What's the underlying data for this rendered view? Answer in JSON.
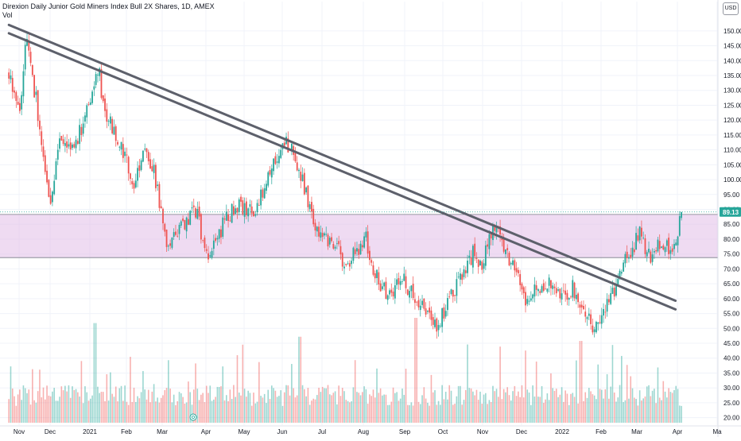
{
  "header": {
    "title": "Direxion Daily Junior Gold Miners Index Bull 2X Shares, 1D, AMEX",
    "volume_label": "Vol",
    "currency": "USD"
  },
  "colors": {
    "up": "#26a69a",
    "down": "#ef5350",
    "trendline": "#5d606b",
    "zone_fill": "#e1bee7",
    "zone_border": "#787b86",
    "price_tag": "#26a69a"
  },
  "chart_data": {
    "type": "candlestick",
    "title": "Direxion Daily Junior Gold Miners Index Bull 2X Shares, 1D, AMEX",
    "y_axis": {
      "ticks": [
        "150.00",
        "145.00",
        "140.00",
        "135.00",
        "130.00",
        "125.00",
        "120.00",
        "115.00",
        "110.00",
        "105.00",
        "100.00",
        "95.00",
        "90.00",
        "85.00",
        "80.00",
        "75.00",
        "70.00",
        "65.00",
        "60.00",
        "55.00",
        "50.00",
        "45.00",
        "40.00",
        "35.00",
        "30.00",
        "25.00",
        "20.00"
      ],
      "range": [
        17.5,
        154.5
      ]
    },
    "x_axis": {
      "labels": [
        "Nov",
        "Dec",
        "2021",
        "Feb",
        "Mar",
        "Apr",
        "May",
        "Jun",
        "Jul",
        "Aug",
        "Sep",
        "Oct",
        "Nov",
        "Dec",
        "2022",
        "Feb",
        "Mar",
        "Apr",
        "Ma"
      ]
    },
    "last_price": "89.13",
    "zone": {
      "top": 88.3,
      "bottom": 73.8
    },
    "trendlines": [
      {
        "from": [
          "2020-10-28",
          152.0
        ],
        "to": [
          "2022-04-05",
          59.3
        ]
      },
      {
        "from": [
          "2020-10-28",
          149.2
        ],
        "to": [
          "2022-04-05",
          56.4
        ]
      }
    ],
    "price_path": [
      [
        "2020-10-28",
        136
      ],
      [
        "2020-11-06",
        120
      ],
      [
        "2020-11-10",
        148
      ],
      [
        "2020-11-18",
        128
      ],
      [
        "2020-11-30",
        92
      ],
      [
        "2020-12-08",
        116
      ],
      [
        "2020-12-18",
        110
      ],
      [
        "2020-12-28",
        122
      ],
      [
        "2021-01-06",
        138
      ],
      [
        "2021-01-12",
        121
      ],
      [
        "2021-01-22",
        114
      ],
      [
        "2021-02-03",
        98
      ],
      [
        "2021-02-10",
        110
      ],
      [
        "2021-02-18",
        105
      ],
      [
        "2021-02-24",
        90
      ],
      [
        "2021-03-02",
        78
      ],
      [
        "2021-03-08",
        80
      ],
      [
        "2021-03-15",
        86
      ],
      [
        "2021-03-25",
        90
      ],
      [
        "2021-03-31",
        76
      ],
      [
        "2021-04-06",
        76
      ],
      [
        "2021-04-15",
        86
      ],
      [
        "2021-04-25",
        92
      ],
      [
        "2021-05-08",
        88
      ],
      [
        "2021-05-18",
        98
      ],
      [
        "2021-05-28",
        110
      ],
      [
        "2021-06-02",
        112
      ],
      [
        "2021-06-10",
        108
      ],
      [
        "2021-06-18",
        96
      ],
      [
        "2021-06-25",
        84
      ],
      [
        "2021-07-02",
        82
      ],
      [
        "2021-07-12",
        78
      ],
      [
        "2021-07-20",
        71
      ],
      [
        "2021-07-28",
        76
      ],
      [
        "2021-08-05",
        80
      ],
      [
        "2021-08-09",
        70
      ],
      [
        "2021-08-20",
        62
      ],
      [
        "2021-09-03",
        66
      ],
      [
        "2021-09-15",
        60
      ],
      [
        "2021-09-29",
        51
      ],
      [
        "2021-10-08",
        58
      ],
      [
        "2021-10-18",
        67
      ],
      [
        "2021-10-28",
        75
      ],
      [
        "2021-11-05",
        72
      ],
      [
        "2021-11-12",
        84
      ],
      [
        "2021-11-19",
        80
      ],
      [
        "2021-11-29",
        70
      ],
      [
        "2021-12-08",
        60
      ],
      [
        "2021-12-16",
        64
      ],
      [
        "2021-12-27",
        66
      ],
      [
        "2022-01-05",
        60
      ],
      [
        "2022-01-14",
        64
      ],
      [
        "2022-01-24",
        56
      ],
      [
        "2022-01-31",
        50
      ],
      [
        "2022-02-08",
        55
      ],
      [
        "2022-02-16",
        63
      ],
      [
        "2022-02-24",
        72
      ],
      [
        "2022-03-01",
        76
      ],
      [
        "2022-03-08",
        82
      ],
      [
        "2022-03-15",
        74
      ],
      [
        "2022-03-24",
        80
      ],
      [
        "2022-03-31",
        76
      ],
      [
        "2022-04-06",
        82
      ],
      [
        "2022-04-11",
        89
      ]
    ],
    "volume": {
      "range": [
        0,
        100
      ],
      "peaks": [
        [
          "2021-09-13",
          100
        ],
        [
          "2021-01-04",
          95
        ],
        [
          "2021-06-14",
          82
        ],
        [
          "2022-01-21",
          78
        ]
      ]
    },
    "grid": true,
    "legend": "none"
  }
}
